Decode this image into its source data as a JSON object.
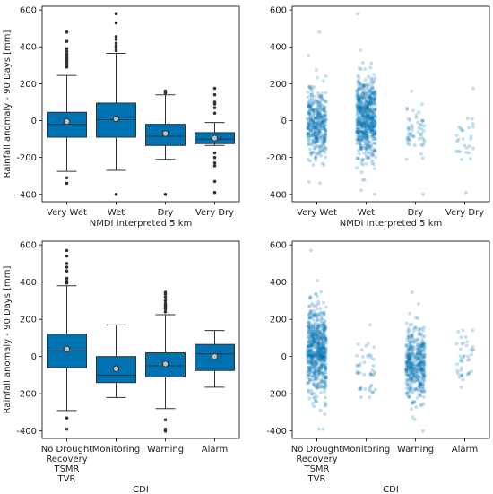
{
  "colors": {
    "box": "#0072b2",
    "scatter": "#0072b2",
    "line": "#333333",
    "mean_marker": "#333333"
  },
  "chart_data": [
    {
      "type": "box",
      "panel": "top-left",
      "xlabel": "NMDI Interpreted 5 km",
      "ylabel": "Rainfall anomaly - 90 Days [mm]",
      "ylim": [
        -440,
        620
      ],
      "yticks": [
        -400,
        -200,
        0,
        200,
        400,
        600
      ],
      "categories": [
        "Very Wet",
        "Wet",
        "Dry",
        "Very Dry"
      ],
      "boxes": [
        {
          "q1": -90,
          "median": -20,
          "q3": 45,
          "whisker_low": -275,
          "whisker_high": 245,
          "mean": -5,
          "outliers": [
            290,
            300,
            310,
            320,
            330,
            340,
            350,
            360,
            375,
            390,
            430,
            480,
            -310,
            -340
          ]
        },
        {
          "q1": -90,
          "median": 5,
          "q3": 95,
          "whisker_low": -270,
          "whisker_high": 365,
          "mean": 10,
          "outliers": [
            380,
            395,
            405,
            420,
            440,
            455,
            530,
            580,
            -400
          ]
        },
        {
          "q1": -135,
          "median": -85,
          "q3": -20,
          "whisker_low": -210,
          "whisker_high": 140,
          "mean": -70,
          "outliers": [
            150,
            155,
            160,
            -400
          ]
        },
        {
          "q1": -125,
          "median": -100,
          "q3": -65,
          "whisker_low": -135,
          "whisker_high": -10,
          "mean": -95,
          "outliers": [
            40,
            70,
            90,
            100,
            140,
            175,
            -175,
            -200,
            -230,
            -245,
            -330,
            -390
          ]
        }
      ]
    },
    {
      "type": "scatter",
      "panel": "top-right",
      "xlabel": "NMDI Interpreted 5 km",
      "ylabel": "",
      "ylim": [
        -440,
        620
      ],
      "yticks": [
        -400,
        -200,
        0,
        200,
        400,
        600
      ],
      "categories": [
        "Very Wet",
        "Wet",
        "Dry",
        "Very Dry"
      ],
      "strips": [
        {
          "n": 380,
          "center": -10,
          "spread": 95,
          "min": -340,
          "max": 480
        },
        {
          "n": 620,
          "center": 5,
          "spread": 115,
          "min": -400,
          "max": 580
        },
        {
          "n": 55,
          "center": -75,
          "spread": 70,
          "min": -400,
          "max": 160
        },
        {
          "n": 28,
          "center": -95,
          "spread": 60,
          "min": -390,
          "max": 175
        }
      ]
    },
    {
      "type": "box",
      "panel": "bottom-left",
      "xlabel": "CDI",
      "ylabel": "Rainfall anomaly - 90 Days [mm]",
      "ylim": [
        -440,
        620
      ],
      "yticks": [
        -400,
        -200,
        0,
        200,
        400,
        600
      ],
      "categories": [
        "No Drought\nRecovery\nTSMR\nTVR",
        "Monitoring",
        "Warning",
        "Alarm"
      ],
      "boxes": [
        {
          "q1": -60,
          "median": 30,
          "q3": 120,
          "whisker_low": -290,
          "whisker_high": 380,
          "mean": 40,
          "outliers": [
            395,
            405,
            420,
            460,
            480,
            500,
            540,
            570,
            -330,
            -390
          ]
        },
        {
          "q1": -140,
          "median": -100,
          "q3": 0,
          "whisker_low": -220,
          "whisker_high": 170,
          "mean": -65,
          "outliers": []
        },
        {
          "q1": -110,
          "median": -50,
          "q3": 20,
          "whisker_low": -280,
          "whisker_high": 225,
          "mean": -40,
          "outliers": [
            240,
            255,
            265,
            275,
            285,
            300,
            320,
            335,
            345,
            -340,
            -390,
            -400
          ]
        },
        {
          "q1": -75,
          "median": 15,
          "q3": 65,
          "whisker_low": -165,
          "whisker_high": 140,
          "mean": 0,
          "outliers": []
        }
      ]
    },
    {
      "type": "scatter",
      "panel": "bottom-right",
      "xlabel": "CDI",
      "ylabel": "",
      "ylim": [
        -440,
        620
      ],
      "yticks": [
        -400,
        -200,
        0,
        200,
        400,
        600
      ],
      "categories": [
        "No Drought\nRecovery\nTSMR\nTVR",
        "Monitoring",
        "Warning",
        "Alarm"
      ],
      "strips": [
        {
          "n": 620,
          "center": 35,
          "spread": 115,
          "min": -390,
          "max": 570
        },
        {
          "n": 45,
          "center": -65,
          "spread": 80,
          "min": -220,
          "max": 170
        },
        {
          "n": 420,
          "center": -40,
          "spread": 95,
          "min": -400,
          "max": 345
        },
        {
          "n": 40,
          "center": 0,
          "spread": 70,
          "min": -165,
          "max": 140
        }
      ]
    }
  ]
}
